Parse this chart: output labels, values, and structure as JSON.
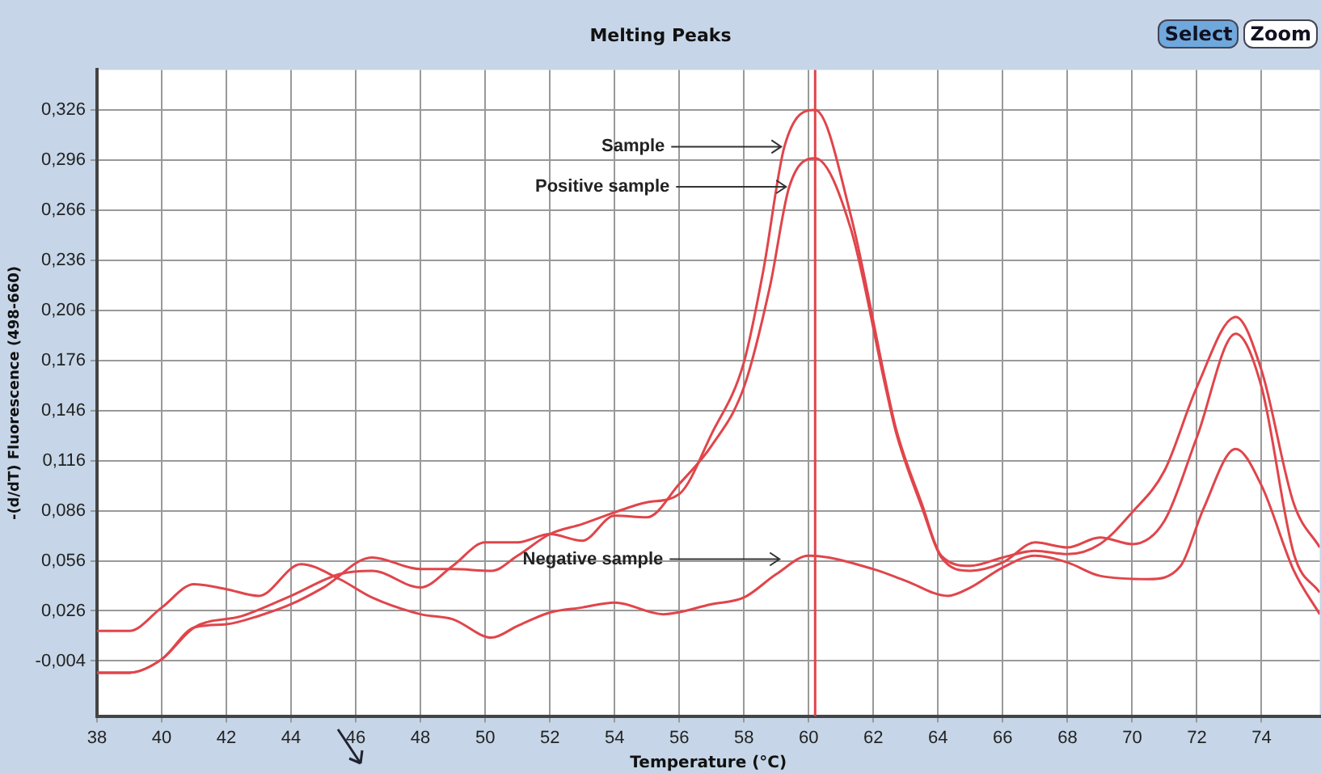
{
  "chart_data": {
    "type": "line",
    "title": "Melting Peaks",
    "xlabel": "Temperature (°C)",
    "ylabel": "-(d/dT) Fluorescence (498-660)",
    "xlim": [
      38,
      75.8
    ],
    "ylim": [
      -0.037,
      0.35
    ],
    "xticks": [
      38,
      40,
      42,
      44,
      46,
      48,
      50,
      52,
      54,
      56,
      58,
      60,
      62,
      64,
      66,
      68,
      70,
      72,
      74
    ],
    "yticks": [
      {
        "value": -0.004,
        "label": "-0,004"
      },
      {
        "value": 0.026,
        "label": "0,026"
      },
      {
        "value": 0.056,
        "label": "0,056"
      },
      {
        "value": 0.086,
        "label": "0,086"
      },
      {
        "value": 0.116,
        "label": "0,116"
      },
      {
        "value": 0.146,
        "label": "0,146"
      },
      {
        "value": 0.176,
        "label": "0,176"
      },
      {
        "value": 0.206,
        "label": "0,206"
      },
      {
        "value": 0.236,
        "label": "0,236"
      },
      {
        "value": 0.266,
        "label": "0,266"
      },
      {
        "value": 0.296,
        "label": "0,296"
      },
      {
        "value": 0.326,
        "label": "0,326"
      }
    ],
    "grid": true,
    "legend": false,
    "marker": "none",
    "line_style": "solid",
    "series": [
      {
        "color": "#e0454b",
        "x": [
          38,
          39,
          40,
          41,
          42,
          43,
          44,
          45,
          46.5,
          48,
          49,
          50.2,
          51,
          52,
          53,
          54,
          55,
          56,
          57,
          58,
          58.6,
          59.25,
          60.2,
          61.3,
          62.4,
          62.7,
          63.5,
          64.1,
          65,
          66,
          67,
          68,
          69,
          70,
          71,
          72,
          73.2,
          74,
          75,
          75.8
        ],
        "values": [
          -0.011,
          -0.011,
          -0.003,
          0.016,
          0.018,
          0.023,
          0.03,
          0.04,
          0.058,
          0.051,
          0.051,
          0.05,
          0.059,
          0.072,
          0.078,
          0.085,
          0.091,
          0.096,
          0.132,
          0.175,
          0.23,
          0.304,
          0.326,
          0.263,
          0.161,
          0.135,
          0.09,
          0.059,
          0.053,
          0.058,
          0.062,
          0.06,
          0.066,
          0.085,
          0.11,
          0.16,
          0.202,
          0.17,
          0.09,
          0.064
        ]
      },
      {
        "color": "#e0454b",
        "x": [
          38,
          39,
          40,
          41,
          42.5,
          44,
          45.5,
          46.5,
          48,
          49,
          50,
          51,
          52,
          53,
          54,
          55,
          56,
          57,
          58,
          58.8,
          59.4,
          60.2,
          61.3,
          62.4,
          62.7,
          63.5,
          64.1,
          65,
          66,
          67,
          68,
          69,
          70,
          71,
          72,
          73.2,
          74,
          75,
          75.8
        ],
        "values": [
          -0.011,
          -0.011,
          -0.003,
          0.016,
          0.023,
          0.035,
          0.048,
          0.05,
          0.04,
          0.053,
          0.067,
          0.067,
          0.072,
          0.068,
          0.083,
          0.082,
          0.102,
          0.125,
          0.16,
          0.22,
          0.28,
          0.297,
          0.255,
          0.158,
          0.133,
          0.088,
          0.058,
          0.05,
          0.055,
          0.067,
          0.064,
          0.07,
          0.066,
          0.08,
          0.13,
          0.192,
          0.16,
          0.06,
          0.037
        ]
      },
      {
        "color": "#e0454b",
        "x": [
          38,
          39,
          40,
          41,
          42,
          43,
          44.3,
          45.5,
          46.5,
          48,
          49,
          50.2,
          51,
          52,
          53,
          54,
          55.5,
          57,
          58,
          59,
          60,
          62,
          63,
          64.3,
          65,
          66,
          67,
          68,
          69,
          70.5,
          71.5,
          72.2,
          73.2,
          74,
          75,
          75.8
        ],
        "values": [
          0.014,
          0.014,
          0.028,
          0.042,
          0.039,
          0.035,
          0.054,
          0.045,
          0.034,
          0.024,
          0.021,
          0.01,
          0.017,
          0.025,
          0.028,
          0.031,
          0.024,
          0.03,
          0.034,
          0.048,
          0.059,
          0.051,
          0.044,
          0.035,
          0.04,
          0.052,
          0.059,
          0.055,
          0.047,
          0.045,
          0.053,
          0.087,
          0.123,
          0.101,
          0.05,
          0.024
        ]
      }
    ],
    "ref_lines": [
      {
        "axis": "x",
        "value": 60.2,
        "color": "#e0454b"
      }
    ],
    "annotations": [
      {
        "text": "Sample",
        "x": 59.25,
        "y": 0.304
      },
      {
        "text": "Positive sample",
        "x": 59.4,
        "y": 0.28
      },
      {
        "text": "Negative sample",
        "x": 59.2,
        "y": 0.057
      },
      "Select",
      "Zoom"
    ]
  }
}
